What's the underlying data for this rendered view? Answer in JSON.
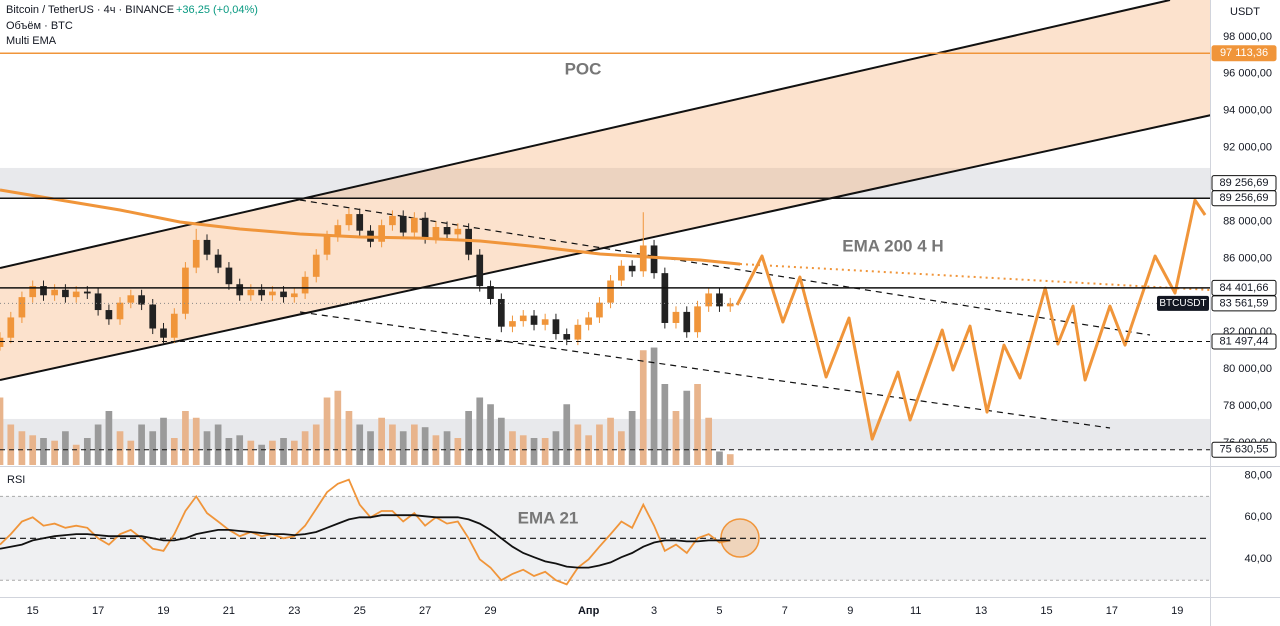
{
  "chart_data": {
    "type": "candlestick",
    "title": "Bitcoin / TetherUS · 4ч · BINANCE",
    "change": "+36,25 (+0,04%)",
    "indicators": [
      "Объём · BTC",
      "Multi EMA"
    ],
    "currency": "USDT",
    "annotation": "POC",
    "up_color": "#f0953a",
    "down_color": "#222222",
    "x": [
      -1,
      -0.67,
      -0.33,
      0,
      0.33,
      0.67,
      1,
      1.33,
      1.67,
      2,
      2.33,
      2.67,
      3,
      3.33,
      3.67,
      4,
      4.33,
      4.67,
      5,
      5.33,
      5.67,
      6,
      6.33,
      6.67,
      7,
      7.33,
      7.67,
      8,
      8.33,
      8.67,
      9,
      9.33,
      9.67,
      10,
      10.33,
      10.67,
      11,
      11.33,
      11.67,
      12,
      12.33,
      12.67,
      13,
      13.33,
      13.67,
      14,
      14.33,
      14.67,
      15,
      15.33,
      15.67,
      16,
      16.33,
      16.67,
      17,
      17.33,
      17.67,
      18,
      18.33,
      18.67,
      19,
      19.33,
      19.67,
      20,
      20.33,
      20.67,
      21,
      21.33
    ],
    "open": [
      81200,
      81700,
      82800,
      83900,
      84500,
      84000,
      84300,
      83900,
      84200,
      84100,
      83200,
      82700,
      83600,
      84000,
      83500,
      82200,
      81700,
      83000,
      85500,
      87000,
      86200,
      85500,
      84600,
      84000,
      84300,
      84000,
      84200,
      83900,
      84100,
      85000,
      86200,
      87200,
      87800,
      88400,
      87500,
      86900,
      87800,
      88300,
      87400,
      88200,
      87100,
      87700,
      87300,
      87600,
      86200,
      84500,
      83800,
      82300,
      82600,
      82900,
      82400,
      82700,
      81900,
      81600,
      82400,
      82800,
      83600,
      84800,
      85600,
      85300,
      86700,
      85200,
      82500,
      83100,
      82000,
      83400,
      84100,
      83400
    ],
    "high": [
      82000,
      83100,
      84200,
      84800,
      84800,
      84600,
      84600,
      84500,
      84500,
      84400,
      83500,
      83900,
      84300,
      84300,
      83800,
      82500,
      83300,
      85800,
      87600,
      87300,
      86500,
      85800,
      84900,
      84600,
      84600,
      84500,
      84500,
      84400,
      85300,
      86500,
      87500,
      88100,
      88700,
      88700,
      87800,
      88100,
      88600,
      88600,
      88500,
      88500,
      88000,
      88000,
      87900,
      87900,
      86500,
      84800,
      84100,
      82900,
      83200,
      83200,
      83000,
      83000,
      82200,
      82700,
      83100,
      83900,
      85100,
      85900,
      85900,
      88500,
      87000,
      85500,
      83400,
      83400,
      83700,
      84400,
      84400,
      83860
    ],
    "low": [
      81000,
      81400,
      82500,
      83600,
      83700,
      83700,
      83600,
      83600,
      83800,
      82900,
      82400,
      82400,
      83300,
      83200,
      81900,
      81400,
      81400,
      82700,
      85200,
      85900,
      85200,
      84300,
      83700,
      83700,
      83700,
      83700,
      83600,
      83600,
      83800,
      84700,
      85900,
      86900,
      87500,
      87200,
      86600,
      86600,
      87500,
      87100,
      87100,
      86800,
      86800,
      87000,
      87000,
      85900,
      84200,
      83500,
      82000,
      82000,
      82300,
      82100,
      82100,
      81600,
      81300,
      81300,
      82100,
      82500,
      83300,
      84500,
      85000,
      85000,
      84900,
      82200,
      82200,
      81700,
      81700,
      83100,
      83100,
      83100
    ],
    "close": [
      81700,
      82800,
      83900,
      84500,
      84000,
      84300,
      83900,
      84200,
      84100,
      83200,
      82700,
      83600,
      84000,
      83500,
      82200,
      81700,
      83000,
      85500,
      87000,
      86200,
      85500,
      84600,
      84000,
      84300,
      84000,
      84200,
      83900,
      84100,
      85000,
      86200,
      87200,
      87800,
      88400,
      87500,
      86900,
      87800,
      88300,
      87400,
      88200,
      87100,
      87700,
      87300,
      87600,
      86200,
      84500,
      83800,
      82300,
      82600,
      82900,
      82400,
      82700,
      81900,
      81600,
      82400,
      82800,
      83600,
      84800,
      85600,
      85300,
      86700,
      85200,
      82500,
      83100,
      82000,
      83400,
      84100,
      83400,
      83560
    ],
    "xlim": [
      -1,
      36
    ],
    "xticks": [
      {
        "value": 0,
        "label": "15"
      },
      {
        "value": 2,
        "label": "17"
      },
      {
        "value": 4,
        "label": "19"
      },
      {
        "value": 6,
        "label": "21"
      },
      {
        "value": 8,
        "label": "23"
      },
      {
        "value": 10,
        "label": "25"
      },
      {
        "value": 12,
        "label": "27"
      },
      {
        "value": 14,
        "label": "29"
      },
      {
        "value": 17,
        "label": "Апр"
      },
      {
        "value": 19,
        "label": "3"
      },
      {
        "value": 21,
        "label": "5"
      },
      {
        "value": 23,
        "label": "7"
      },
      {
        "value": 25,
        "label": "9"
      },
      {
        "value": 27,
        "label": "11"
      },
      {
        "value": 29,
        "label": "13"
      },
      {
        "value": 31,
        "label": "15"
      },
      {
        "value": 33,
        "label": "17"
      },
      {
        "value": 35,
        "label": "19"
      }
    ],
    "ylim": [
      74750,
      100000
    ],
    "yticks": [
      {
        "value": 98000,
        "label": "98 000,00"
      },
      {
        "value": 96000,
        "label": "96 000,00"
      },
      {
        "value": 94000,
        "label": "94 000,00"
      },
      {
        "value": 92000,
        "label": "92 000,00"
      },
      {
        "value": 88000,
        "label": "88 000,00"
      },
      {
        "value": 86000,
        "label": "86 000,00"
      },
      {
        "value": 82000,
        "label": "82 000,00"
      },
      {
        "value": 80000,
        "label": "80 000,00"
      },
      {
        "value": 78000,
        "label": "78 000,00"
      },
      {
        "value": 76000,
        "label": "76 000,00"
      }
    ],
    "ema": {
      "name": "EMA 200 4 H",
      "color": "#f0953a",
      "x": [
        -1,
        0.83,
        2.67,
        4.5,
        6.34,
        8.17,
        10.01,
        11.84,
        13.68,
        15.51,
        17.35,
        18.88,
        20.41,
        21.63
      ],
      "values": [
        89704,
        89162,
        88620,
        87970,
        87590,
        87320,
        87160,
        87100,
        86940,
        86615,
        86235,
        86070,
        85910,
        85690
      ]
    },
    "projection": {
      "color": "#f0953a",
      "x": [
        21.54,
        22.3,
        22.94,
        23.46,
        24.26,
        24.96,
        25.67,
        26.46,
        26.83,
        27.81,
        28.14,
        28.66,
        29.18,
        29.7,
        30.19,
        30.96,
        31.35,
        31.81,
        32.18,
        32.94,
        33.4,
        34.32,
        34.93,
        35.54,
        35.85
      ],
      "values": [
        83470,
        86130,
        82550,
        84990,
        79570,
        82770,
        76210,
        79840,
        77240,
        82120,
        79950,
        82330,
        77670,
        81300,
        79520,
        84390,
        81360,
        83420,
        79410,
        83420,
        81300,
        86130,
        84120,
        89160,
        88350
      ]
    },
    "levels": [
      {
        "value": 97113.36,
        "label": "97 113,36",
        "color": "#f0953a",
        "style": "solid"
      },
      {
        "value": 89256.69,
        "label": "89 256,69",
        "color": "#111111",
        "style": "solid"
      },
      {
        "value": 84401.66,
        "label": "84 401,66",
        "color": "#111111",
        "style": "solid"
      },
      {
        "value": 81497.44,
        "label": "81 497,44",
        "color": "#111111",
        "style": "dashed"
      },
      {
        "value": 75630.55,
        "label": "75 630,55",
        "color": "#111111",
        "style": "dashed"
      }
    ],
    "last_price": {
      "value": 83561.59,
      "label": "83 561,59",
      "symbol": "BTCUSDT"
    },
    "zones": [
      {
        "from": 89256.69,
        "to": 90900,
        "label": "89 256,69"
      },
      {
        "from": 75630.55,
        "to": 77300
      }
    ],
    "volume": {
      "vlim": [
        0,
        100
      ],
      "up_color": "#e8b48c",
      "down_color": "#9a9a9a",
      "values": [
        50,
        30,
        25,
        22,
        20,
        18,
        25,
        15,
        20,
        30,
        40,
        25,
        18,
        30,
        25,
        35,
        20,
        40,
        35,
        25,
        30,
        20,
        22,
        18,
        15,
        18,
        20,
        18,
        25,
        30,
        50,
        55,
        40,
        30,
        25,
        35,
        30,
        25,
        30,
        28,
        22,
        25,
        20,
        40,
        50,
        45,
        35,
        25,
        22,
        20,
        20,
        25,
        45,
        30,
        22,
        30,
        35,
        25,
        40,
        85,
        87,
        60,
        40,
        55,
        60,
        35,
        10,
        8
      ]
    },
    "rsi": {
      "label": "RSI",
      "color": "#f0953a",
      "ylim": [
        22,
        84
      ],
      "yticks": [
        {
          "value": 80,
          "label": "80,00"
        },
        {
          "value": 60,
          "label": "60,00"
        },
        {
          "value": 40,
          "label": "40,00"
        }
      ],
      "bands": [
        30,
        50,
        70
      ],
      "values": [
        47,
        52,
        58,
        60,
        56,
        57,
        55,
        56,
        55,
        50,
        47,
        52,
        54,
        50,
        45,
        44,
        52,
        63,
        70,
        62,
        58,
        54,
        51,
        53,
        51,
        52,
        50,
        51,
        56,
        64,
        72,
        76,
        78,
        66,
        60,
        63,
        63,
        58,
        62,
        56,
        60,
        57,
        58,
        50,
        40,
        36,
        30,
        33,
        35,
        32,
        34,
        30,
        28,
        36,
        40,
        46,
        52,
        58,
        55,
        66,
        56,
        44,
        47,
        43,
        50,
        52,
        48,
        49
      ],
      "ema": {
        "name": "EMA 21",
        "color": "#111111",
        "values": [
          45,
          46,
          47,
          49,
          50,
          51,
          51.5,
          52,
          52,
          51.5,
          51,
          51,
          51,
          51,
          50,
          49,
          49,
          50,
          52,
          53,
          54,
          54,
          53.5,
          53,
          52.5,
          52,
          52,
          51.5,
          52,
          53,
          55,
          57,
          59,
          60,
          60,
          61,
          61,
          61,
          61,
          60.5,
          60,
          60,
          60,
          59,
          57,
          54,
          50,
          46,
          43,
          41,
          39,
          38,
          36.5,
          36,
          36,
          37,
          38.5,
          41,
          43,
          46,
          48,
          49,
          49,
          48.5,
          48.5,
          49,
          49,
          49
        ]
      }
    }
  }
}
